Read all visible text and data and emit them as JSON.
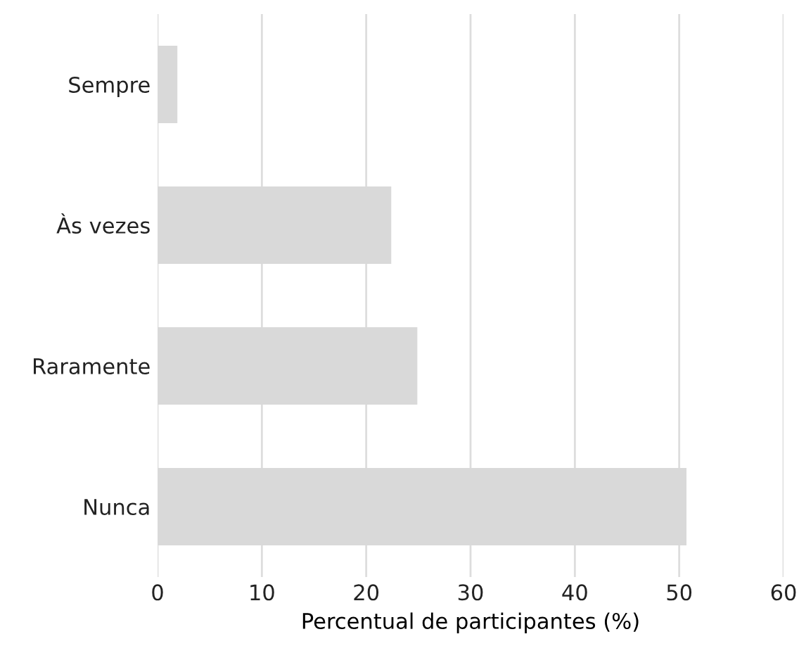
{
  "chart_data": {
    "type": "bar",
    "orientation": "horizontal",
    "categories": [
      "Sempre",
      "Às vezes",
      "Raramente",
      "Nunca"
    ],
    "values": [
      1.9,
      22.4,
      24.9,
      50.7
    ],
    "color": "#d9d9d9",
    "xlabel": "Percentual de participantes (%)",
    "xlim": [
      0,
      60
    ],
    "xticks": [
      0,
      10,
      20,
      30,
      40,
      50,
      60
    ],
    "grid": "x",
    "legend": false
  }
}
